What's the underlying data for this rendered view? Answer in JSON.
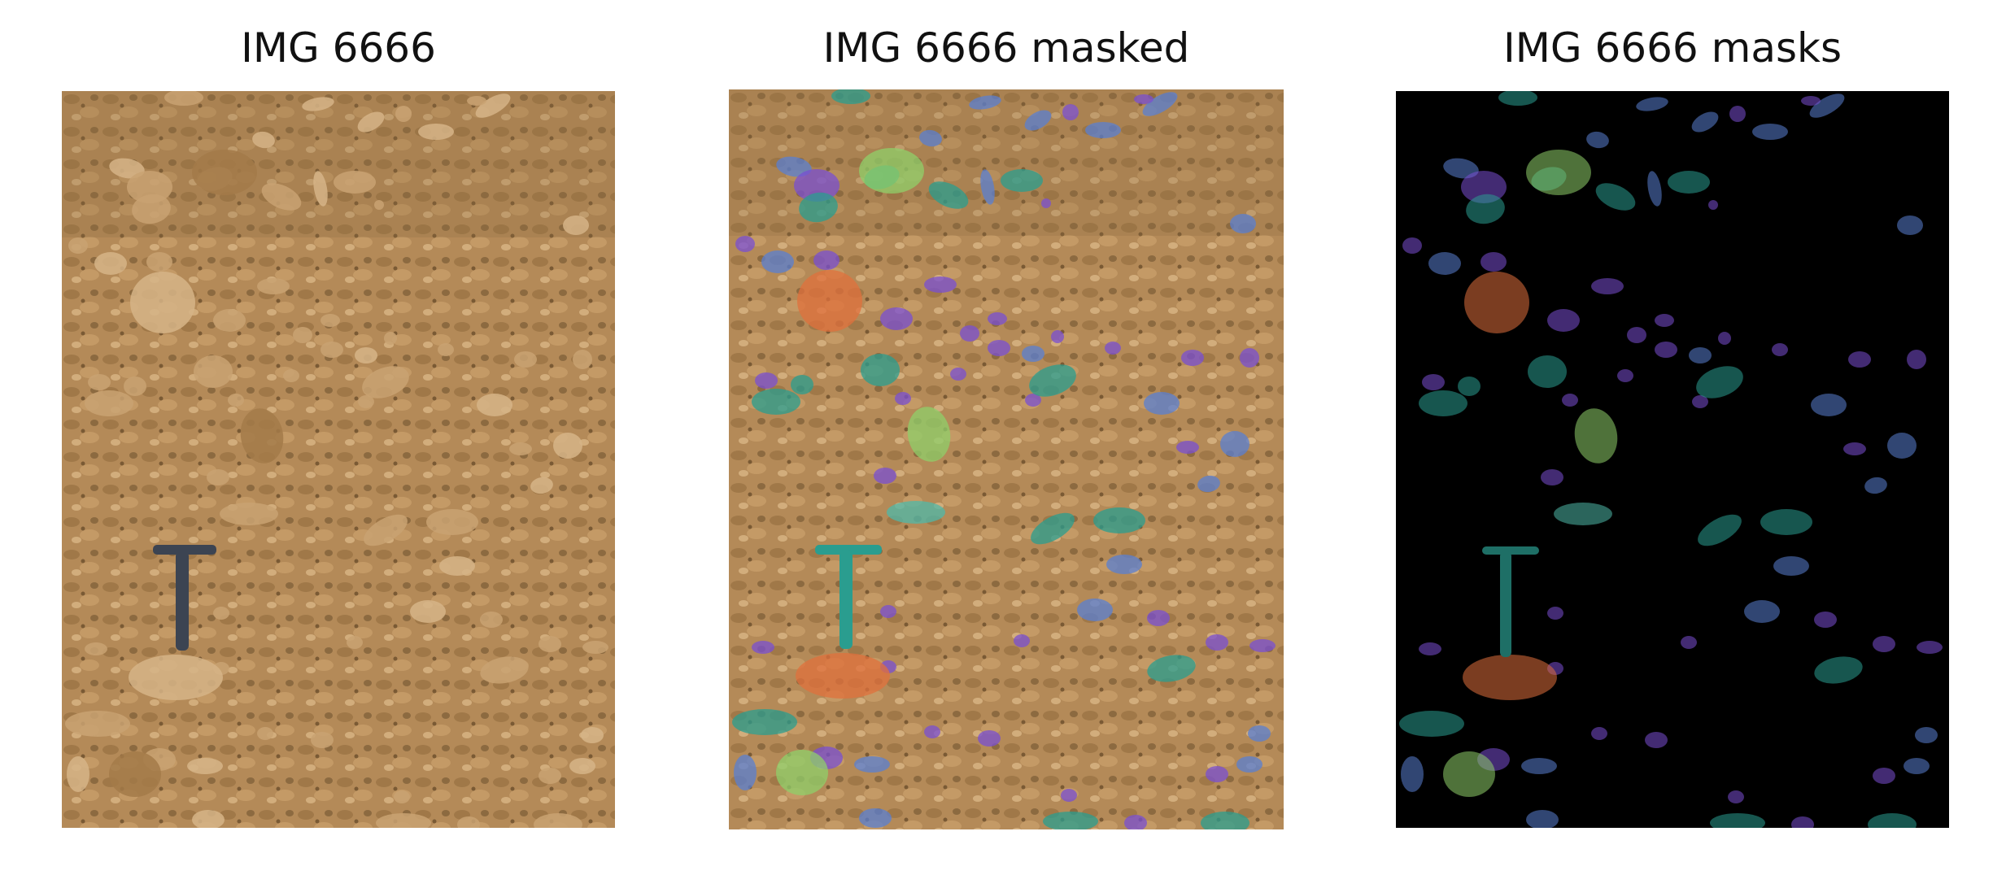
{
  "figure": {
    "panels": [
      {
        "title": "IMG 6666"
      },
      {
        "title": "IMG 6666 masked"
      },
      {
        "title": "IMG 6666 masks"
      }
    ]
  },
  "colors": {
    "page_background": "#ffffff",
    "soil": "#b48a58",
    "soil_dark": "#8c6a40",
    "soil_light": "#d2ad7c",
    "mask_background": "#000000",
    "hammer": "#3c4452",
    "mask_palette": [
      "#2a9d8f",
      "#3ec1b0",
      "#5a7fd1",
      "#7a4fd1",
      "#8fcf6a",
      "#e0703c",
      "#4fb8a8"
    ]
  }
}
